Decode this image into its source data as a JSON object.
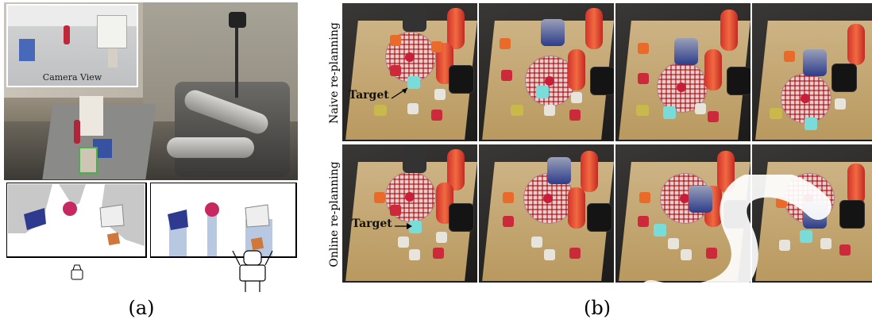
{
  "panel_a": {
    "inset_label": "Camera View",
    "caption": "(a)"
  },
  "panel_b": {
    "row1_label": "Naive re-planning",
    "row2_label": "Online re-planning",
    "target_label": "Target",
    "caption": "(b)"
  },
  "colors": {
    "blue_block": "#2e3a8f",
    "pink_ball": "#c72860",
    "orange_block": "#d0783c",
    "grey_block": "#eeeeee",
    "column_blue": "#b8c8e0",
    "shadow_grey": "#c8c8c8"
  }
}
